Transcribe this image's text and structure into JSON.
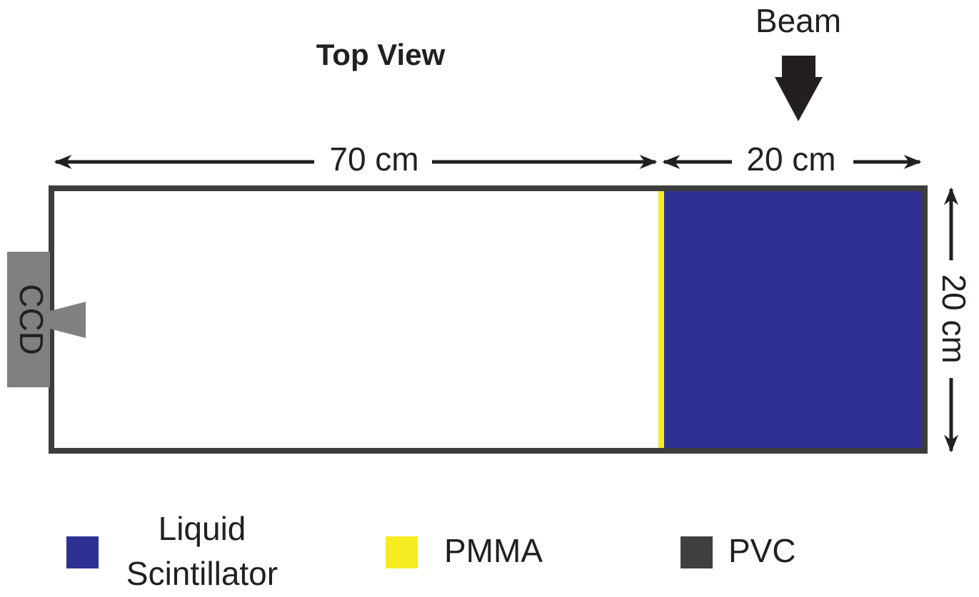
{
  "title": "Top View",
  "beam": "Beam",
  "dimensions": {
    "length_main": "70 cm",
    "length_scintillator": "20 cm",
    "width": "20 cm"
  },
  "ccd": "CCD",
  "legend": [
    {
      "lines": [
        "Liquid",
        "Scintillator"
      ]
    },
    {
      "lines": [
        "PMMA"
      ]
    },
    {
      "lines": [
        "PVC"
      ]
    }
  ]
}
